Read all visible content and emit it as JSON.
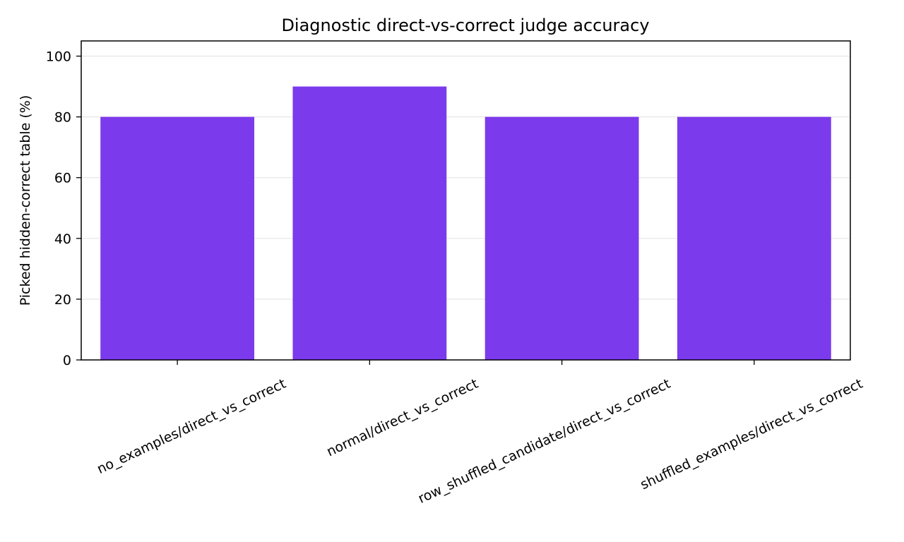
{
  "chart_data": {
    "type": "bar",
    "title": "Diagnostic direct-vs-correct judge accuracy",
    "xlabel": "",
    "ylabel": "Picked hidden-correct table (%)",
    "categories": [
      "no_examples/direct_vs_correct",
      "normal/direct_vs_correct",
      "row_shuffled_candidate/direct_vs_correct",
      "shuffled_examples/direct_vs_correct"
    ],
    "values": [
      80,
      90,
      80,
      80
    ],
    "ylim": [
      0,
      105
    ],
    "yticks": [
      0,
      20,
      40,
      60,
      80,
      100
    ],
    "grid": "horizontal",
    "bar_color": "#7c3aed",
    "grid_color": "#e6e6e6",
    "x_tick_rotation_deg": 25
  }
}
